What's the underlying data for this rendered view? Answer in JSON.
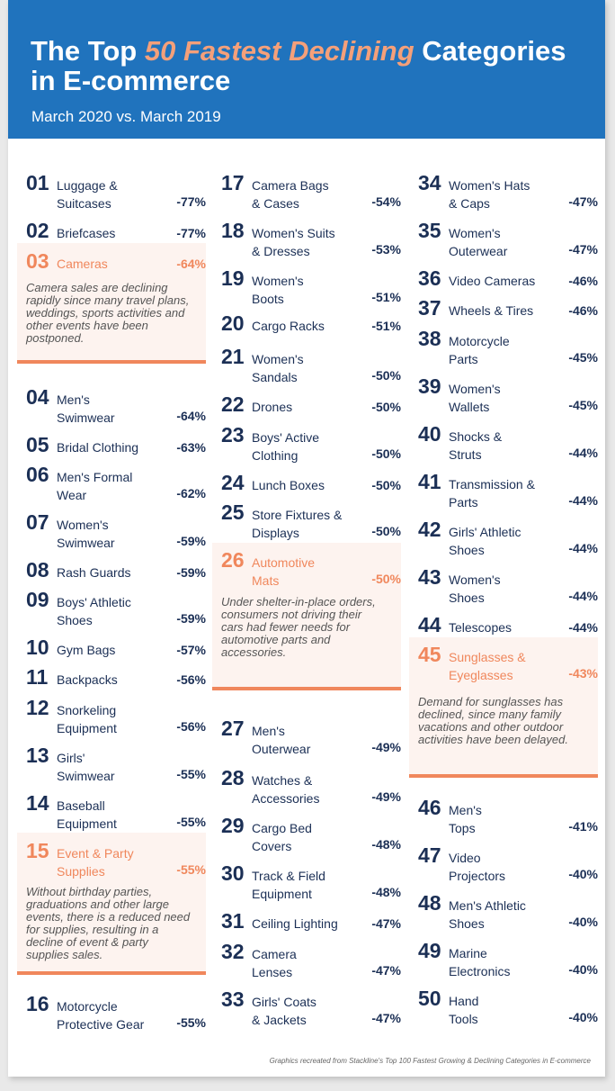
{
  "header": {
    "title_pre": "The Top ",
    "title_highlight": "50 Fastest Declining",
    "title_post": " Categories",
    "title_line2": "in E-commerce",
    "subtitle": "March 2020 vs. March 2019"
  },
  "items": [
    {
      "num": "01",
      "name": [
        "Luggage &",
        "Suitcases"
      ],
      "pct": "-77%"
    },
    {
      "num": "02",
      "name": [
        "Briefcases"
      ],
      "pct": "-77%"
    },
    {
      "num": "03",
      "name": [
        "Cameras"
      ],
      "pct": "-64%",
      "note": "Camera sales are declining rapidly since many travel plans, weddings, sports activities and other events have been postponed."
    },
    {
      "num": "04",
      "name": [
        "Men's",
        "Swimwear"
      ],
      "pct": "-64%"
    },
    {
      "num": "05",
      "name": [
        "Bridal Clothing"
      ],
      "pct": "-63%"
    },
    {
      "num": "06",
      "name": [
        "Men's Formal",
        "Wear"
      ],
      "pct": "-62%"
    },
    {
      "num": "07",
      "name": [
        "Women's",
        "Swimwear"
      ],
      "pct": "-59%"
    },
    {
      "num": "08",
      "name": [
        "Rash Guards"
      ],
      "pct": "-59%"
    },
    {
      "num": "09",
      "name": [
        "Boys' Athletic",
        "Shoes"
      ],
      "pct": "-59%"
    },
    {
      "num": "10",
      "name": [
        "Gym Bags"
      ],
      "pct": "-57%"
    },
    {
      "num": "11",
      "name": [
        "Backpacks"
      ],
      "pct": "-56%"
    },
    {
      "num": "12",
      "name": [
        "Snorkeling",
        "Equipment"
      ],
      "pct": "-56%"
    },
    {
      "num": "13",
      "name": [
        "Girls'",
        "Swimwear"
      ],
      "pct": "-55%"
    },
    {
      "num": "14",
      "name": [
        "Baseball",
        "Equipment"
      ],
      "pct": "-55%"
    },
    {
      "num": "15",
      "name": [
        "Event & Party",
        "Supplies"
      ],
      "pct": "-55%",
      "note": "Without birthday parties, graduations and other large events, there is a reduced need for supplies, resulting in a decline of event & party supplies sales."
    },
    {
      "num": "16",
      "name": [
        "Motorcycle",
        "Protective Gear"
      ],
      "pct": "-55%"
    },
    {
      "num": "17",
      "name": [
        "Camera Bags",
        "& Cases"
      ],
      "pct": "-54%"
    },
    {
      "num": "18",
      "name": [
        "Women's Suits",
        "& Dresses"
      ],
      "pct": "-53%"
    },
    {
      "num": "19",
      "name": [
        "Women's",
        "Boots"
      ],
      "pct": "-51%"
    },
    {
      "num": "20",
      "name": [
        "Cargo Racks"
      ],
      "pct": "-51%"
    },
    {
      "num": "21",
      "name": [
        "Women's",
        "Sandals"
      ],
      "pct": "-50%"
    },
    {
      "num": "22",
      "name": [
        "Drones"
      ],
      "pct": "-50%"
    },
    {
      "num": "23",
      "name": [
        "Boys' Active",
        "Clothing"
      ],
      "pct": "-50%"
    },
    {
      "num": "24",
      "name": [
        "Lunch Boxes"
      ],
      "pct": "-50%"
    },
    {
      "num": "25",
      "name": [
        "Store Fixtures &",
        "Displays"
      ],
      "pct": "-50%"
    },
    {
      "num": "26",
      "name": [
        "Automotive",
        "Mats"
      ],
      "pct": "-50%",
      "note": "Under shelter-in-place orders, consumers not driving their cars had fewer needs for automotive parts and accessories."
    },
    {
      "num": "27",
      "name": [
        "Men's",
        "Outerwear"
      ],
      "pct": "-49%"
    },
    {
      "num": "28",
      "name": [
        "Watches &",
        "Accessories"
      ],
      "pct": "-49%"
    },
    {
      "num": "29",
      "name": [
        "Cargo Bed",
        "Covers"
      ],
      "pct": "-48%"
    },
    {
      "num": "30",
      "name": [
        "Track & Field",
        "Equipment"
      ],
      "pct": "-48%"
    },
    {
      "num": "31",
      "name": [
        "Ceiling Lighting"
      ],
      "pct": "-47%"
    },
    {
      "num": "32",
      "name": [
        "Camera",
        "Lenses"
      ],
      "pct": "-47%"
    },
    {
      "num": "33",
      "name": [
        "Girls' Coats",
        "& Jackets"
      ],
      "pct": "-47%"
    },
    {
      "num": "34",
      "name": [
        "Women's Hats",
        "& Caps"
      ],
      "pct": "-47%"
    },
    {
      "num": "35",
      "name": [
        "Women's",
        "Outerwear"
      ],
      "pct": "-47%"
    },
    {
      "num": "36",
      "name": [
        "Video Cameras"
      ],
      "pct": "-46%"
    },
    {
      "num": "37",
      "name": [
        "Wheels & Tires"
      ],
      "pct": "-46%"
    },
    {
      "num": "38",
      "name": [
        "Motorcycle",
        "Parts"
      ],
      "pct": "-45%"
    },
    {
      "num": "39",
      "name": [
        "Women's",
        "Wallets"
      ],
      "pct": "-45%"
    },
    {
      "num": "40",
      "name": [
        "Shocks &",
        "Struts"
      ],
      "pct": "-44%"
    },
    {
      "num": "41",
      "name": [
        "Transmission &",
        "Parts"
      ],
      "pct": "-44%"
    },
    {
      "num": "42",
      "name": [
        "Girls' Athletic",
        "Shoes"
      ],
      "pct": "-44%"
    },
    {
      "num": "43",
      "name": [
        "Women's",
        "Shoes"
      ],
      "pct": "-44%"
    },
    {
      "num": "44",
      "name": [
        "Telescopes"
      ],
      "pct": "-44%"
    },
    {
      "num": "45",
      "name": [
        "Sunglasses &",
        "Eyeglasses"
      ],
      "pct": "-43%",
      "note": "Demand for sunglasses has declined, since many family vacations and other outdoor activities have been delayed."
    },
    {
      "num": "46",
      "name": [
        "Men's",
        "Tops"
      ],
      "pct": "-41%"
    },
    {
      "num": "47",
      "name": [
        "Video",
        "Projectors"
      ],
      "pct": "-40%"
    },
    {
      "num": "48",
      "name": [
        "Men's Athletic",
        "Shoes"
      ],
      "pct": "-40%"
    },
    {
      "num": "49",
      "name": [
        "Marine",
        "Electronics"
      ],
      "pct": "-40%"
    },
    {
      "num": "50",
      "name": [
        "Hand",
        "Tools"
      ],
      "pct": "-40%"
    }
  ],
  "footer": "Graphics recreated from Stackline's Top 100 Fastest Growing & Declining Categories in E-commerce",
  "colors": {
    "header": "#2073bd",
    "highlight": "#f0875c",
    "ink": "#1b2f55",
    "note_bg": "#fdf3ef"
  }
}
